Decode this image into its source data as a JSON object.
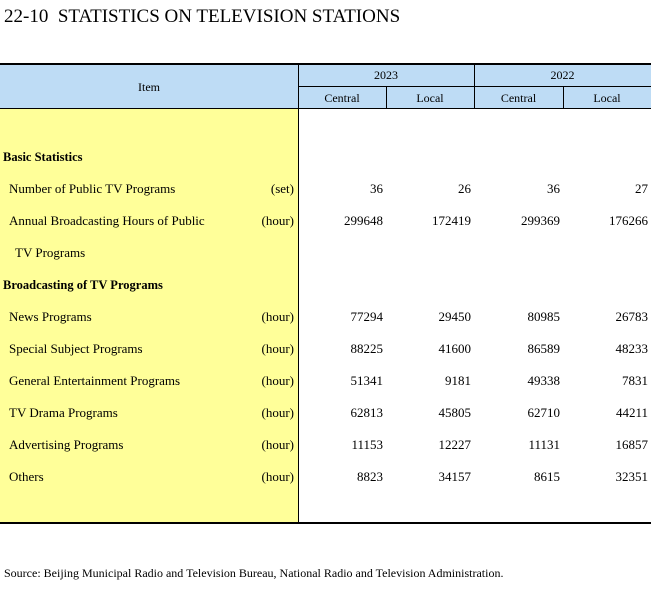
{
  "title": "22-10  STATISTICS ON TELEVISION STATIONS",
  "table": {
    "header": {
      "item": "Item",
      "years": [
        "2023",
        "2022"
      ],
      "subcolumns": [
        "Central",
        "Local",
        "Central",
        "Local"
      ]
    },
    "rows": [
      {
        "section": "Basic Statistics"
      },
      {
        "label": "Number of Public TV Programs",
        "unit": "(set)",
        "values": [
          36,
          26,
          36,
          27
        ]
      },
      {
        "label": "Annual Broadcasting Hours of Public",
        "label_line2": "TV Programs",
        "unit": "(hour)",
        "values": [
          299648,
          172419,
          299369,
          176266
        ]
      },
      {
        "section": "Broadcasting of TV Programs"
      },
      {
        "label": "News Programs",
        "unit": "(hour)",
        "values": [
          77294,
          29450,
          80985,
          26783
        ]
      },
      {
        "label": "Special Subject Programs",
        "unit": "(hour)",
        "values": [
          88225,
          41600,
          86589,
          48233
        ]
      },
      {
        "label": "General Entertainment Programs",
        "unit": "(hour)",
        "values": [
          51341,
          9181,
          49338,
          7831
        ]
      },
      {
        "label": "TV Drama Programs",
        "unit": "(hour)",
        "values": [
          62813,
          45805,
          62710,
          44211
        ]
      },
      {
        "label": "Advertising Programs",
        "unit": "(hour)",
        "values": [
          11153,
          12227,
          11131,
          16857
        ]
      },
      {
        "label": "Others",
        "unit": "(hour)",
        "values": [
          8823,
          34157,
          8615,
          32351
        ]
      }
    ]
  },
  "source": "Source: Beijing Municipal Radio and Television Bureau, National Radio and Television Administration."
}
